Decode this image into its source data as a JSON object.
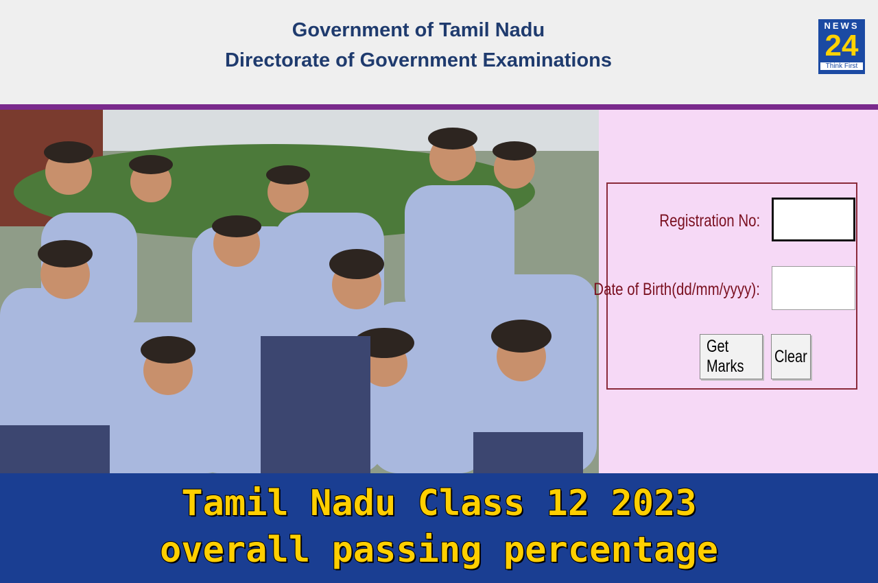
{
  "header": {
    "line1": "Government of Tamil Nadu",
    "line2": "Directorate of Government Examinations"
  },
  "logo": {
    "top": "NEWS",
    "number": "24",
    "tagline": "Think First"
  },
  "form": {
    "registration_label": "Registration No:",
    "dob_label": "Date of Birth(dd/mm/yyyy):",
    "buttons": [
      "Get Marks",
      "Clear"
    ]
  },
  "headline": {
    "line1": "Tamil Nadu Class 12 2023",
    "line2": "overall passing percentage"
  }
}
